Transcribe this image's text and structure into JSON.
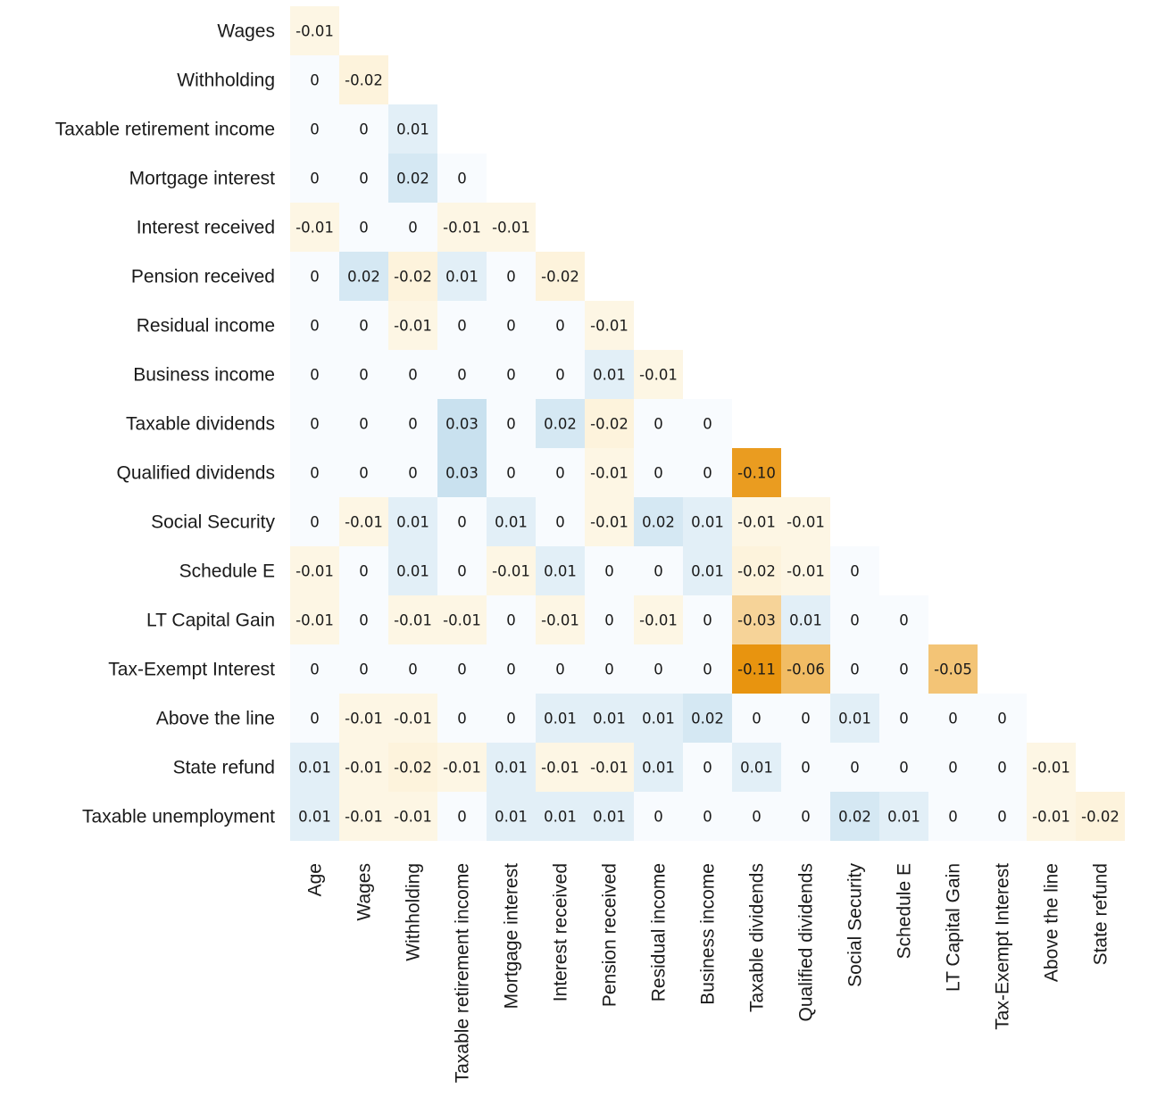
{
  "chart_data": {
    "type": "heatmap",
    "title": "",
    "row_labels": [
      "Wages",
      "Withholding",
      "Taxable retirement income",
      "Mortgage interest",
      "Interest received",
      "Pension received",
      "Residual income",
      "Business income",
      "Taxable dividends",
      "Qualified dividends",
      "Social Security",
      "Schedule E",
      "LT Capital Gain",
      "Tax-Exempt Interest",
      "Above the line",
      "State refund",
      "Taxable unemployment"
    ],
    "col_labels": [
      "Age",
      "Wages",
      "Withholding",
      "Taxable retirement income",
      "Mortgage interest",
      "Interest received",
      "Pension received",
      "Residual income",
      "Business income",
      "Taxable dividends",
      "Qualified dividends",
      "Social Security",
      "Schedule E",
      "LT Capital Gain",
      "Tax-Exempt Interest",
      "Above the line",
      "State refund"
    ],
    "values": [
      [
        -0.01
      ],
      [
        0,
        -0.02
      ],
      [
        0,
        0,
        0.01
      ],
      [
        0,
        0,
        0.02,
        0
      ],
      [
        -0.01,
        0,
        0,
        -0.01,
        -0.01
      ],
      [
        0,
        0.02,
        -0.02,
        0.01,
        0,
        -0.02
      ],
      [
        0,
        0,
        -0.01,
        0,
        0,
        0,
        -0.01
      ],
      [
        0,
        0,
        0,
        0,
        0,
        0,
        0.01,
        -0.01
      ],
      [
        0,
        0,
        0,
        0.03,
        0,
        0.02,
        -0.02,
        0,
        0
      ],
      [
        0,
        0,
        0,
        0.03,
        0,
        0,
        -0.01,
        0,
        0,
        -0.1
      ],
      [
        0,
        -0.01,
        0.01,
        0,
        0.01,
        0,
        -0.01,
        0.02,
        0.01,
        -0.01,
        -0.01
      ],
      [
        -0.01,
        0,
        0.01,
        0,
        -0.01,
        0.01,
        0,
        0,
        0.01,
        -0.02,
        -0.01,
        0
      ],
      [
        -0.01,
        0,
        -0.01,
        -0.01,
        0,
        -0.01,
        0,
        -0.01,
        0,
        -0.03,
        0.01,
        0,
        0
      ],
      [
        0,
        0,
        0,
        0,
        0,
        0,
        0,
        0,
        0,
        -0.11,
        -0.06,
        0,
        0,
        -0.05
      ],
      [
        0,
        -0.01,
        -0.01,
        0,
        0,
        0.01,
        0.01,
        0.01,
        0.02,
        0,
        0,
        0.01,
        0,
        0,
        0
      ],
      [
        0.01,
        -0.01,
        -0.02,
        -0.01,
        0.01,
        -0.01,
        -0.01,
        0.01,
        0,
        0.01,
        0,
        0,
        0,
        0,
        0,
        -0.01
      ],
      [
        0.01,
        -0.01,
        -0.01,
        0,
        0.01,
        0.01,
        0.01,
        0,
        0,
        0,
        0,
        0.02,
        0.01,
        0,
        0,
        -0.01,
        -0.02
      ]
    ],
    "cell_text": [
      [
        "-0.01"
      ],
      [
        "0",
        "-0.02"
      ],
      [
        "0",
        "0",
        "0.01"
      ],
      [
        "0",
        "0",
        "0.02",
        "0"
      ],
      [
        "-0.01",
        "0",
        "0",
        "-0.01",
        "-0.01"
      ],
      [
        "0",
        "0.02",
        "-0.02",
        "0.01",
        "0",
        "-0.02"
      ],
      [
        "0",
        "0",
        "-0.01",
        "0",
        "0",
        "0",
        "-0.01"
      ],
      [
        "0",
        "0",
        "0",
        "0",
        "0",
        "0",
        "0.01",
        "-0.01"
      ],
      [
        "0",
        "0",
        "0",
        "0.03",
        "0",
        "0.02",
        "-0.02",
        "0",
        "0"
      ],
      [
        "0",
        "0",
        "0",
        "0.03",
        "0",
        "0",
        "-0.01",
        "0",
        "0",
        "-0.10"
      ],
      [
        "0",
        "-0.01",
        "0.01",
        "0",
        "0.01",
        "0",
        "-0.01",
        "0.02",
        "0.01",
        "-0.01",
        "-0.01"
      ],
      [
        "-0.01",
        "0",
        "0.01",
        "0",
        "-0.01",
        "0.01",
        "0",
        "0",
        "0.01",
        "-0.02",
        "-0.01",
        "0"
      ],
      [
        "-0.01",
        "0",
        "-0.01",
        "-0.01",
        "0",
        "-0.01",
        "0",
        "-0.01",
        "0",
        "-0.03",
        "0.01",
        "0",
        "0"
      ],
      [
        "0",
        "0",
        "0",
        "0",
        "0",
        "0",
        "0",
        "0",
        "0",
        "-0.11",
        "-0.06",
        "0",
        "0",
        "-0.05"
      ],
      [
        "0",
        "-0.01",
        "-0.01",
        "0",
        "0",
        "0.01",
        "0.01",
        "0.01",
        "0.02",
        "0",
        "0",
        "0.01",
        "0",
        "0",
        "0"
      ],
      [
        "0.01",
        "-0.01",
        "-0.02",
        "-0.01",
        "0.01",
        "-0.01",
        "-0.01",
        "0.01",
        "0",
        "0.01",
        "0",
        "0",
        "0",
        "0",
        "0",
        "-0.01"
      ],
      [
        "0.01",
        "-0.01",
        "-0.01",
        "0",
        "0.01",
        "0.01",
        "0.01",
        "0",
        "0",
        "0",
        "0",
        "0.02",
        "0.01",
        "0",
        "0",
        "-0.01",
        "-0.02"
      ]
    ],
    "colormap": {
      "negative_strong": "#E8940F",
      "negative_light": "#FDF3DC",
      "neutral": "#FFFFFF",
      "positive_light": "#EEF6FB",
      "positive_strong": "#C9E1EF"
    },
    "grid": false,
    "legend": "none"
  }
}
